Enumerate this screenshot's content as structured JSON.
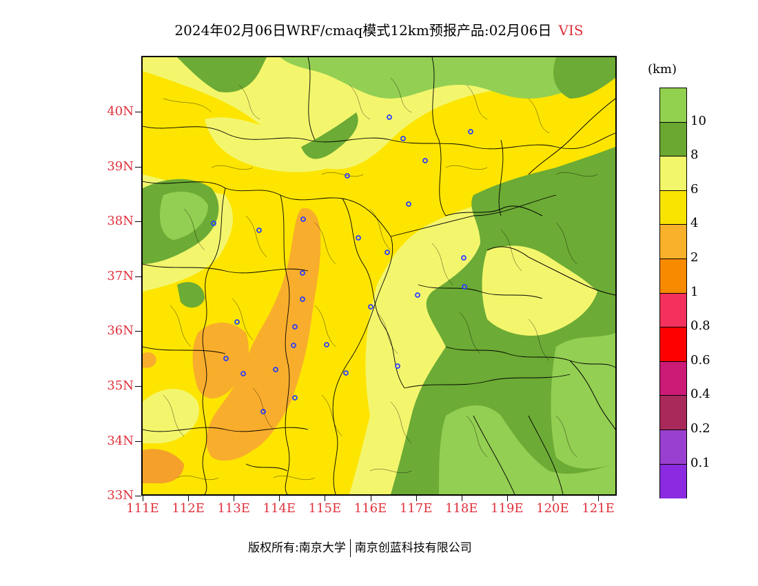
{
  "title": {
    "main": "2024年02月06日WRF/cmaq模式12km预报产品:02月06日",
    "variable": "VIS"
  },
  "colorbar": {
    "unit": "(km)",
    "colors": [
      "#92d050",
      "#6aa832",
      "#f2f66a",
      "#f9e300",
      "#f9b02b",
      "#f88a00",
      "#f4305c",
      "#ff0000",
      "#cc1a77",
      "#a92a5a",
      "#9a40d0",
      "#8b2ae0"
    ],
    "labels": [
      "10",
      "8",
      "6",
      "4",
      "2",
      "1",
      "0.8",
      "0.6",
      "0.4",
      "0.2",
      "0.1"
    ]
  },
  "map": {
    "lat_labels": [
      "40N",
      "39N",
      "38N",
      "37N",
      "36N",
      "35N",
      "34N",
      "33N"
    ],
    "lon_labels": [
      "111E",
      "112E",
      "113E",
      "114E",
      "115E",
      "116E",
      "117E",
      "118E",
      "119E",
      "120E",
      "121E"
    ],
    "colors": {
      "yellow": "#fde500",
      "light_yellow": "#f3f66d",
      "orange": "#f9ad2c",
      "dark_orange": "#f4a02a",
      "light_green": "#93cf52",
      "green": "#6cab35"
    },
    "marker_color": "#2a3cff"
  },
  "footer": {
    "copyright": "版权所有:南京大学",
    "company": "南京创蓝科技有限公司"
  }
}
